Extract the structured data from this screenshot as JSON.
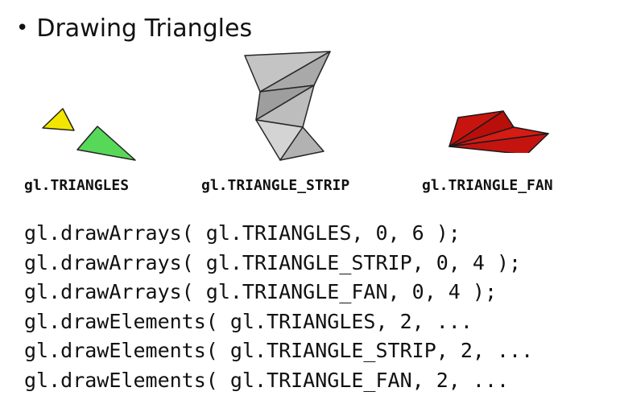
{
  "heading": {
    "bullet": "•",
    "title": "Drawing Triangles"
  },
  "figures": [
    {
      "label": "gl.TRIANGLES",
      "icon": "separate-triangles",
      "colors": [
        "#f2e600",
        "#58d858"
      ]
    },
    {
      "label": "gl.TRIANGLE_STRIP",
      "icon": "triangle-strip",
      "colors": [
        "#d0d0d0",
        "#a6a6a6"
      ]
    },
    {
      "label": "gl.TRIANGLE_FAN",
      "icon": "triangle-fan",
      "colors": [
        "#c8140f",
        "#e0221a"
      ]
    }
  ],
  "code_lines": [
    "gl.drawArrays( gl.TRIANGLES, 0, 6 );",
    "gl.drawArrays( gl.TRIANGLE_STRIP, 0, 4 );",
    "gl.drawArrays( gl.TRIANGLE_FAN, 0, 4 );",
    "gl.drawElements( gl.TRIANGLES, 2, ...",
    "gl.drawElements( gl.TRIANGLE_STRIP, 2, ...",
    "gl.drawElements( gl.TRIANGLE_FAN, 2, ..."
  ]
}
